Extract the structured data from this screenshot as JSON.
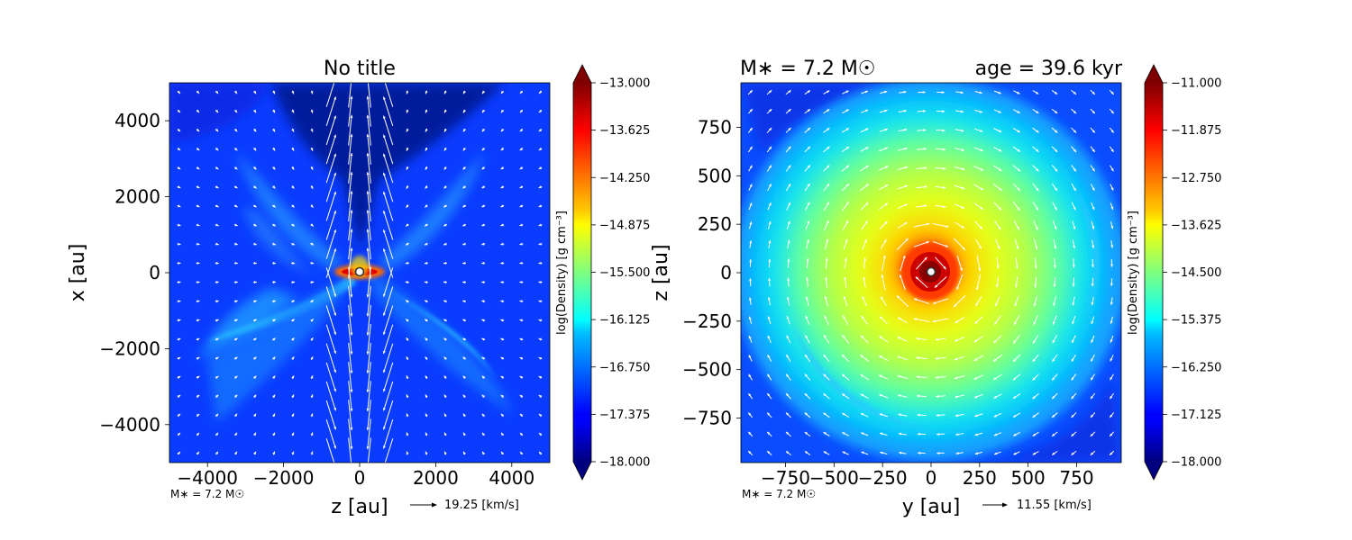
{
  "chart_data": [
    {
      "type": "heatmap",
      "title": "No title",
      "xlabel": "z [au]",
      "ylabel": "x [au]",
      "xlim": [
        -5000,
        5000
      ],
      "ylim": [
        -5000,
        5000
      ],
      "xticks": [
        "−4000",
        "−2000",
        "0",
        "2000",
        "4000"
      ],
      "xtick_values": [
        -4000,
        -2000,
        0,
        2000,
        4000
      ],
      "yticks": [
        "−4000",
        "−2000",
        "0",
        "2000",
        "4000"
      ],
      "ytick_values": [
        -4000,
        -2000,
        0,
        2000,
        4000
      ],
      "colorbar": {
        "label": "log(Density) [g cm⁻³]",
        "min": -18.0,
        "max": -13.0,
        "extend": "both",
        "colormap": "jet",
        "ticks": [
          "−13.000",
          "−13.625",
          "−14.250",
          "−14.875",
          "−15.500",
          "−16.125",
          "−16.750",
          "−17.375",
          "−18.000"
        ],
        "tick_values": [
          -13.0,
          -13.625,
          -14.25,
          -14.875,
          -15.5,
          -16.125,
          -16.75,
          -17.375,
          -18.0
        ]
      },
      "footnote": "M∗ = 7.2 M☉",
      "velocity_key": "19.25 [km/s]",
      "structure": "edge-on",
      "arrow_color": "#ffffff",
      "sink_marker": {
        "x": 0,
        "y": 0
      }
    },
    {
      "type": "heatmap",
      "title_left": "M∗ = 7.2 M☉",
      "title_right": "age = 39.6 kyr",
      "xlabel": "y [au]",
      "ylabel": "z [au]",
      "xlim": [
        -980,
        980
      ],
      "ylim": [
        -980,
        980
      ],
      "xticks": [
        "−750",
        "−500",
        "−250",
        "0",
        "250",
        "500",
        "750"
      ],
      "xtick_values": [
        -750,
        -500,
        -250,
        0,
        250,
        500,
        750
      ],
      "yticks": [
        "−750",
        "−500",
        "−250",
        "0",
        "250",
        "500",
        "750"
      ],
      "ytick_values": [
        -750,
        -500,
        -250,
        0,
        250,
        500,
        750
      ],
      "colorbar": {
        "label": "log(Density) [g cm⁻³]",
        "min": -18.0,
        "max": -11.0,
        "extend": "both",
        "colormap": "jet",
        "ticks": [
          "−11.000",
          "−11.875",
          "−12.750",
          "−13.625",
          "−14.500",
          "−15.375",
          "−16.250",
          "−17.125",
          "−18.000"
        ],
        "tick_values": [
          -11.0,
          -11.875,
          -12.75,
          -13.625,
          -14.5,
          -15.375,
          -16.25,
          -17.125,
          -18.0
        ]
      },
      "footnote": "M∗ = 7.2 M☉",
      "velocity_key": "11.55 [km/s]",
      "structure": "face-on",
      "arrow_color": "#ffffff",
      "sink_marker": {
        "x": 0,
        "y": 0
      }
    }
  ]
}
